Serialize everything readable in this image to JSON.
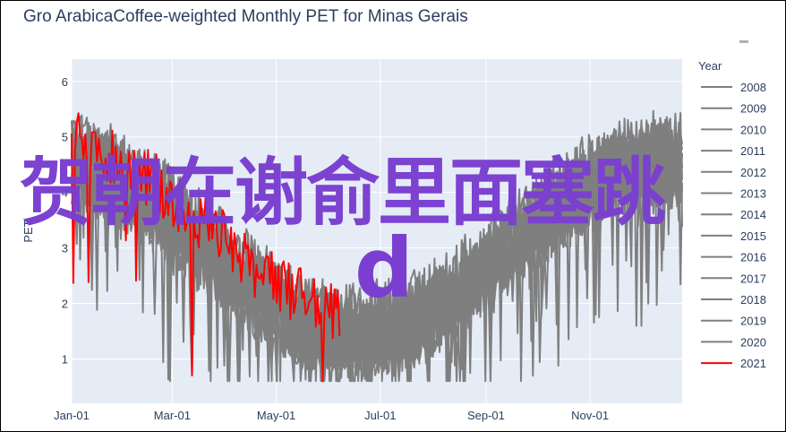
{
  "page": {
    "title": "Gro ArabicaCoffee-weighted Monthly PET for Minas Gerais"
  },
  "overlay": {
    "text1": "贺朝在谢俞里面塞跳",
    "text2": "d"
  },
  "chart_data": {
    "type": "line",
    "title": "Gro ArabicaCoffee-weighted Monthly PET for Minas Gerais",
    "xlabel": "",
    "ylabel": "PET",
    "x_ticks": [
      "Jan-01",
      "Mar-01",
      "May-01",
      "Jul-01",
      "Sep-01",
      "Nov-01"
    ],
    "y_ticks": [
      1,
      2,
      3,
      4,
      5,
      6
    ],
    "ylim": [
      0.2,
      6.4
    ],
    "legend_title": "Year",
    "legend_position": "right",
    "colors": {
      "gray": "#7f7f7f",
      "red": "#ff0000",
      "plot_bg": "#e5ecf6",
      "grid": "#ffffff"
    },
    "series": [
      {
        "name": "2008",
        "color": "#7f7f7f"
      },
      {
        "name": "2009",
        "color": "#7f7f7f"
      },
      {
        "name": "2010",
        "color": "#7f7f7f"
      },
      {
        "name": "2011",
        "color": "#7f7f7f"
      },
      {
        "name": "2012",
        "color": "#7f7f7f"
      },
      {
        "name": "2013",
        "color": "#7f7f7f"
      },
      {
        "name": "2014",
        "color": "#7f7f7f"
      },
      {
        "name": "2015",
        "color": "#7f7f7f"
      },
      {
        "name": "2016",
        "color": "#7f7f7f"
      },
      {
        "name": "2017",
        "color": "#7f7f7f"
      },
      {
        "name": "2018",
        "color": "#7f7f7f"
      },
      {
        "name": "2019",
        "color": "#7f7f7f"
      },
      {
        "name": "2020",
        "color": "#7f7f7f"
      },
      {
        "name": "2021",
        "color": "#ff0000"
      }
    ]
  }
}
